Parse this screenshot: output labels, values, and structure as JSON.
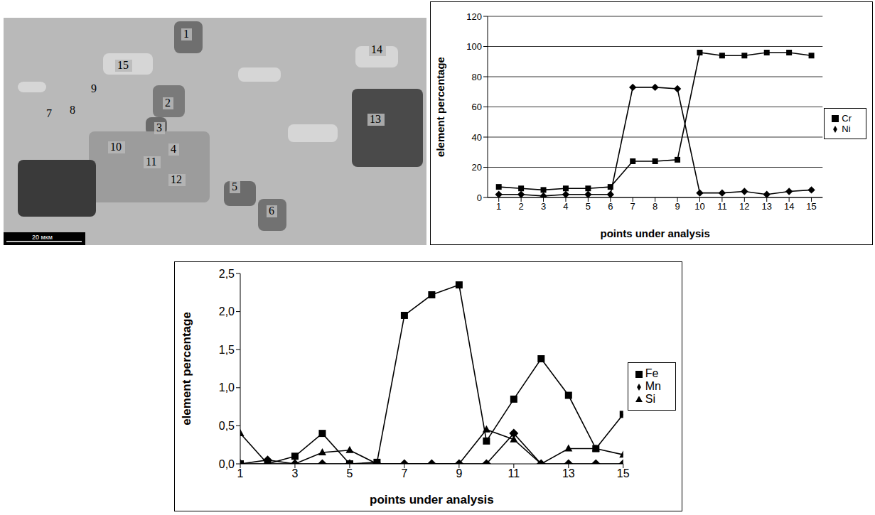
{
  "micrograph": {
    "point_labels": [
      "1",
      "2",
      "3",
      "4",
      "5",
      "6",
      "7",
      "8",
      "9",
      "10",
      "11",
      "12",
      "13",
      "14",
      "15"
    ],
    "scale_bar": "20 мкм"
  },
  "chart_data": [
    {
      "type": "line",
      "x": [
        1,
        2,
        3,
        4,
        5,
        6,
        7,
        8,
        9,
        10,
        11,
        12,
        13,
        14,
        15
      ],
      "xlim": [
        0.5,
        15.5
      ],
      "xticks": [
        1,
        2,
        3,
        4,
        5,
        6,
        7,
        8,
        9,
        10,
        11,
        12,
        13,
        14,
        15
      ],
      "ylim": [
        0,
        120
      ],
      "yticks": [
        0,
        20,
        40,
        60,
        80,
        100,
        120
      ],
      "ylabel": "element percentage",
      "xlabel": "points under analysis",
      "grid": true,
      "legend": "right",
      "series": [
        {
          "name": "Ni",
          "color": "#000000",
          "marker": "diamond",
          "values": [
            2,
            2,
            1,
            2,
            2,
            2,
            73,
            73,
            72,
            3,
            3,
            4,
            2,
            4,
            5
          ]
        },
        {
          "name": "Cr",
          "color": "#000000",
          "marker": "square",
          "values": [
            7,
            6,
            5,
            6,
            6,
            7,
            24,
            24,
            25,
            96,
            94,
            94,
            96,
            96,
            94
          ]
        }
      ]
    },
    {
      "type": "line",
      "x": [
        1,
        2,
        3,
        4,
        5,
        6,
        7,
        8,
        9,
        10,
        11,
        12,
        13,
        14,
        15
      ],
      "xlim": [
        1,
        15
      ],
      "xticks": [
        1,
        3,
        5,
        7,
        9,
        11,
        13,
        15
      ],
      "ylim": [
        0,
        2.5
      ],
      "yticks": [
        {
          "value": 0,
          "label": "0,0"
        },
        {
          "value": 0.5,
          "label": "0,5"
        },
        {
          "value": 1,
          "label": "1,0"
        },
        {
          "value": 1.5,
          "label": "1,5"
        },
        {
          "value": 2,
          "label": "2,0"
        },
        {
          "value": 2.5,
          "label": "2,5"
        }
      ],
      "ylabel": "element percentage",
      "xlabel": "points under analysis",
      "grid": false,
      "legend": "right",
      "series": [
        {
          "name": "Mn",
          "color": "#000000",
          "marker": "diamond",
          "values": [
            0,
            0.05,
            0,
            0,
            0,
            0,
            0,
            0,
            0,
            0,
            0.4,
            0,
            0,
            0,
            0
          ]
        },
        {
          "name": "Fe",
          "color": "#000000",
          "marker": "square",
          "values": [
            0,
            0,
            0.1,
            0.4,
            0,
            0.02,
            1.95,
            2.22,
            2.35,
            0.3,
            0.85,
            1.38,
            0.9,
            0.2,
            0.65
          ]
        },
        {
          "name": "Si",
          "color": "#000000",
          "marker": "triangle",
          "values": [
            0.4,
            0,
            0,
            0.15,
            0.18,
            0,
            0,
            0,
            0,
            0.45,
            0.32,
            0,
            0.2,
            0.2,
            0.12
          ]
        }
      ]
    }
  ]
}
